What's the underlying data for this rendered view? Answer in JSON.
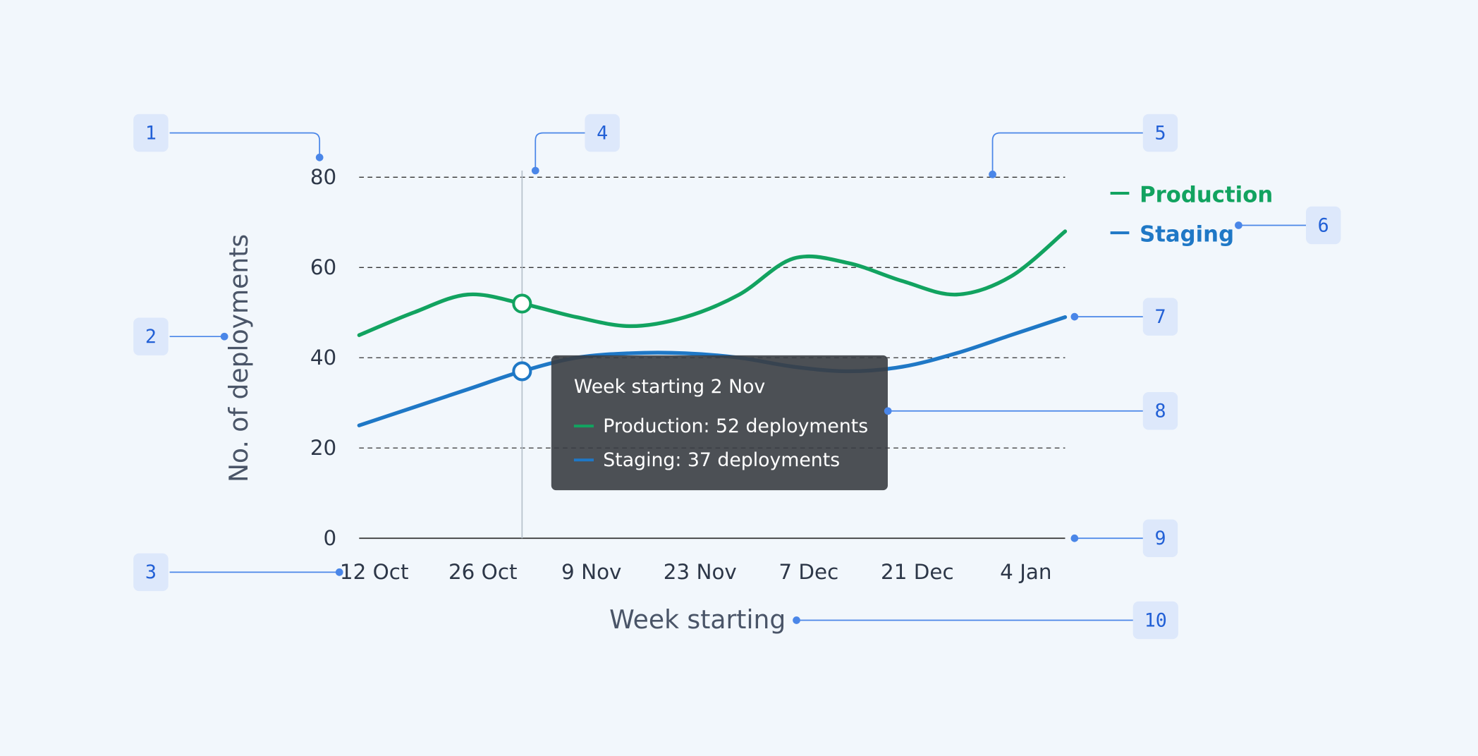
{
  "chart_data": {
    "type": "line",
    "x_label": "Week starting",
    "y_label": "No. of deployments",
    "categories": [
      "12 Oct",
      null,
      "26 Oct",
      null,
      "9 Nov",
      null,
      "23 Nov",
      null,
      "7 Dec",
      null,
      "21 Dec",
      null,
      "4 Jan",
      null
    ],
    "series": [
      {
        "name": "Production",
        "color": "#12a360",
        "values": [
          45,
          50,
          54,
          52,
          49,
          47,
          49,
          54,
          62,
          61,
          57,
          54,
          58,
          68
        ]
      },
      {
        "name": "Staging",
        "color": "#1f78c6",
        "values": [
          25,
          29,
          33,
          37,
          40,
          41,
          41,
          40,
          38,
          37,
          38,
          41,
          45,
          49
        ]
      }
    ],
    "ylim": [
      0,
      80
    ],
    "yticks": [
      0,
      20,
      40,
      60,
      80
    ],
    "grid": true,
    "tooltip": {
      "index": 3,
      "title": "Week starting 2 Nov",
      "lines": [
        "Production: 52 deployments",
        "Staging: 37 deployments"
      ]
    },
    "callouts": [
      "1",
      "2",
      "3",
      "4",
      "5",
      "6",
      "7",
      "8",
      "9",
      "10"
    ]
  }
}
